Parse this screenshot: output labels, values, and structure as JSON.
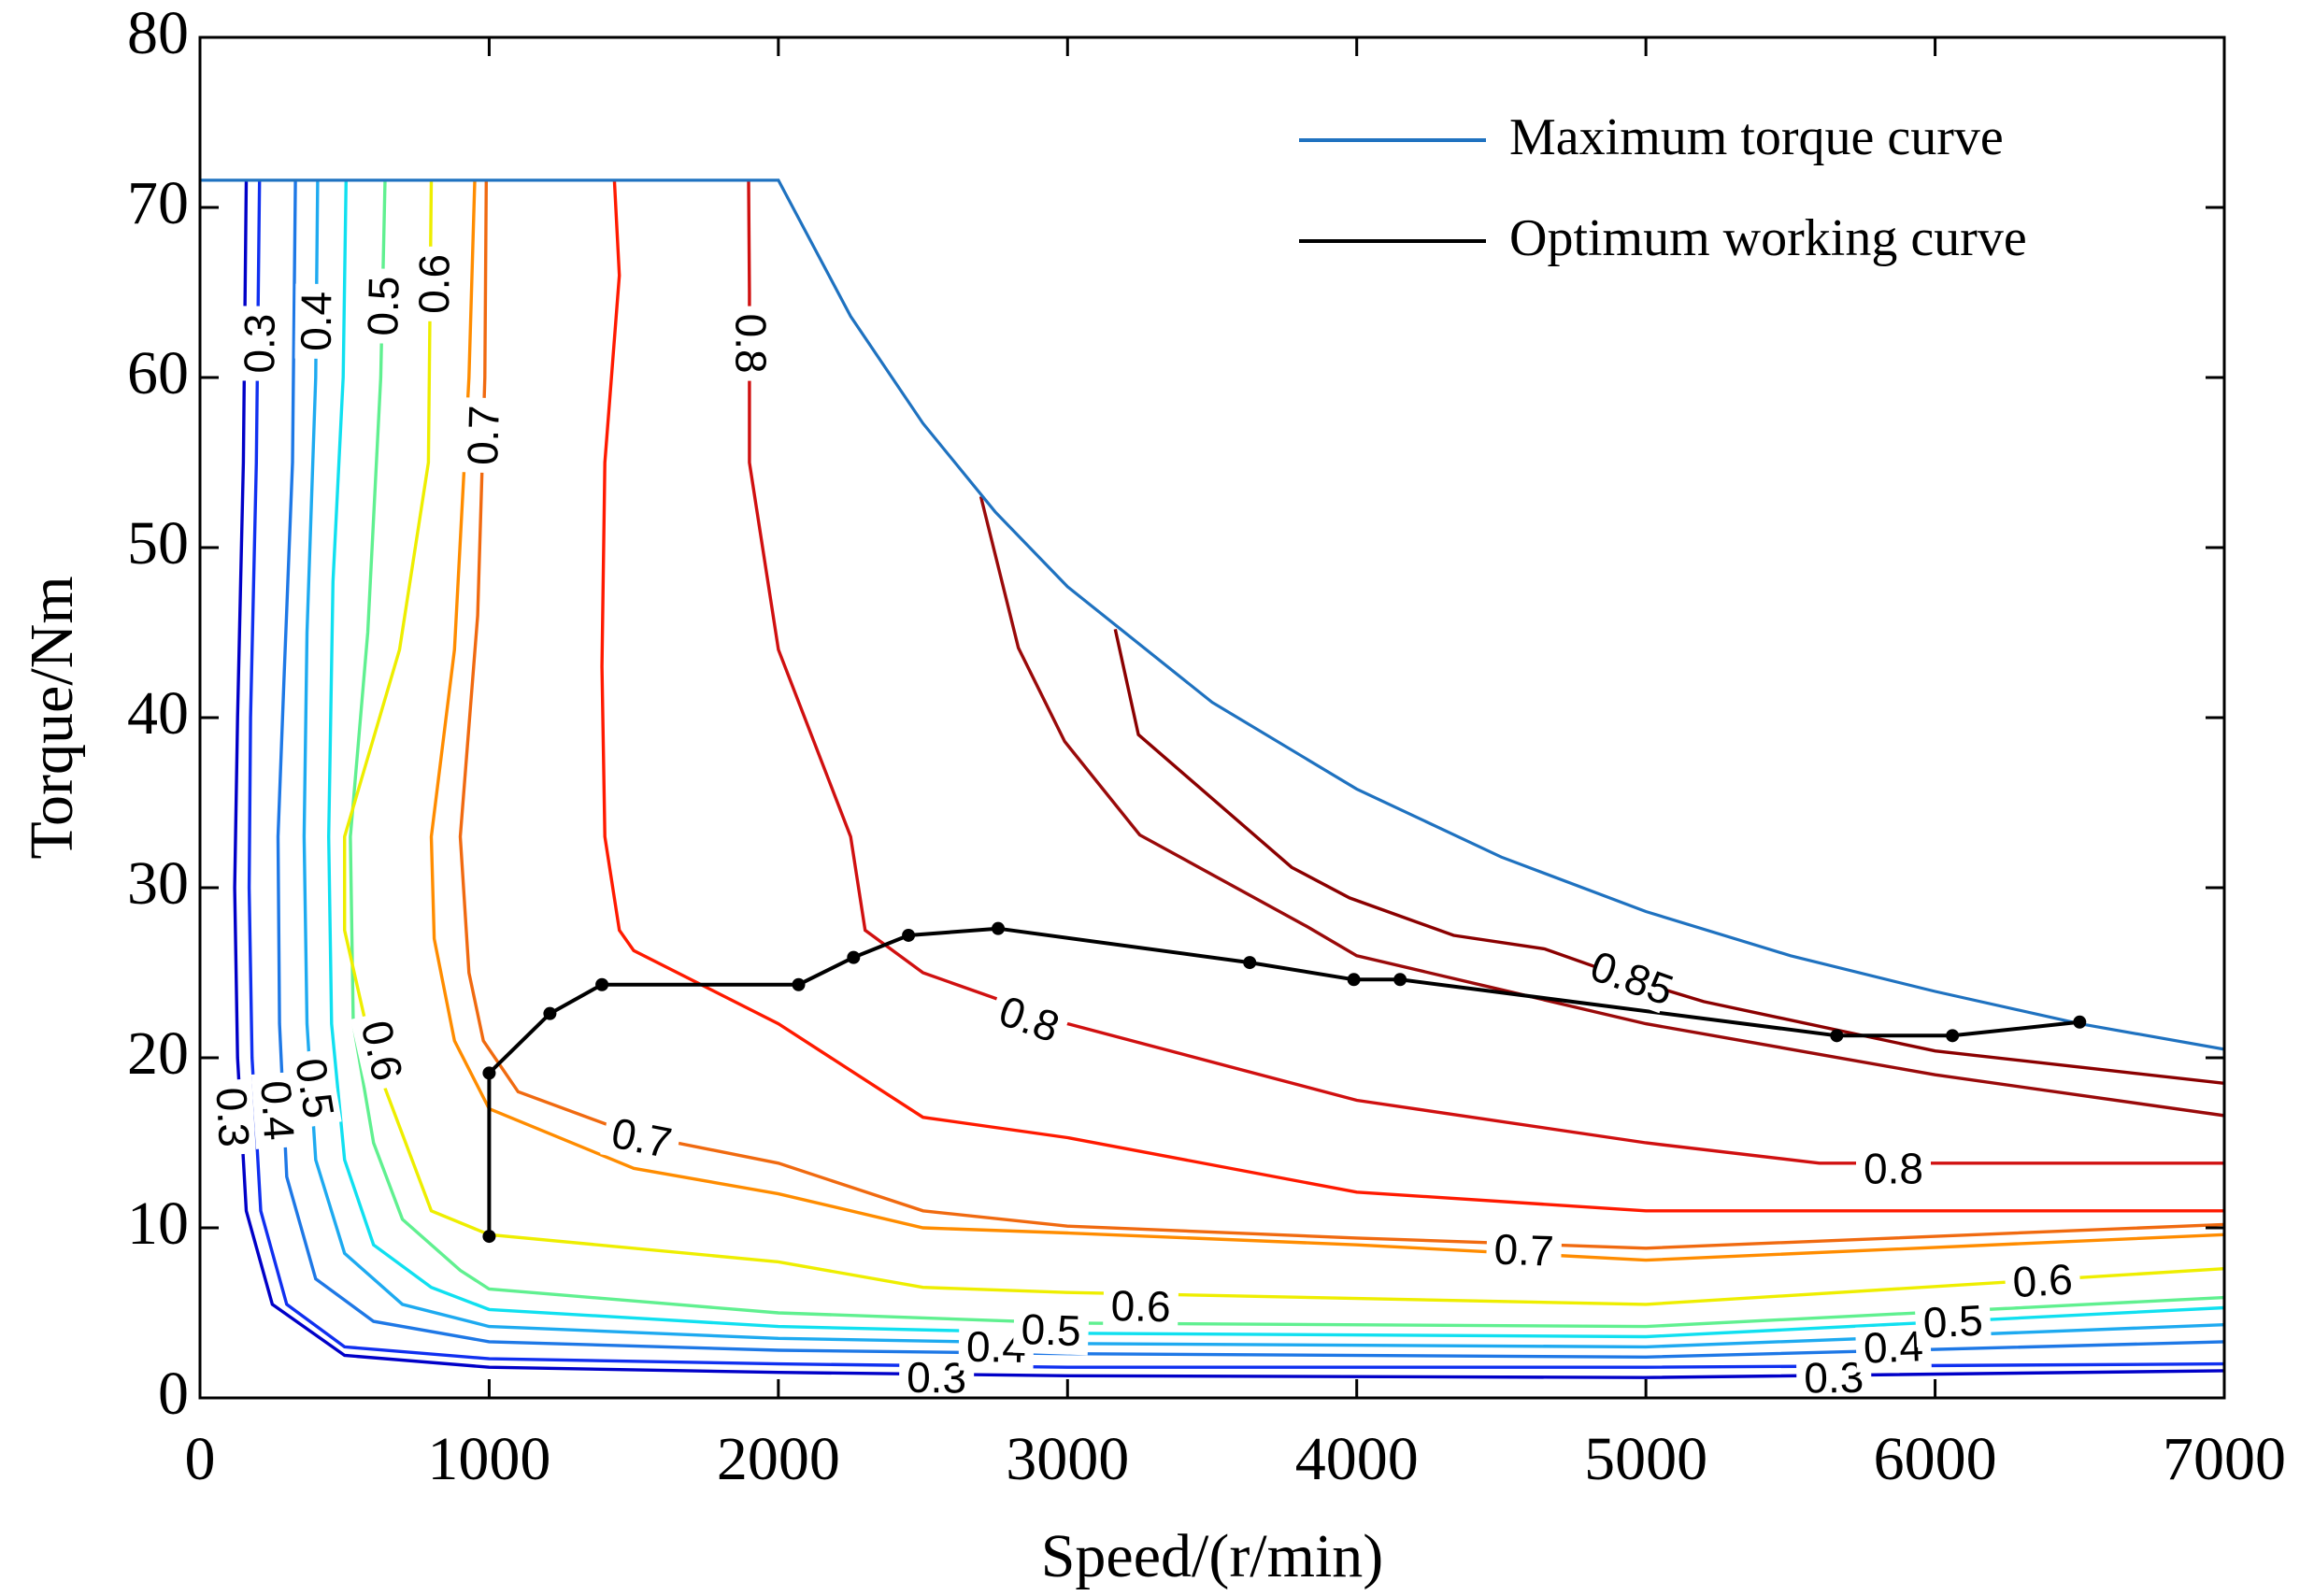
{
  "chart_data": {
    "type": "contour",
    "x_label": "Speed/(r/min)",
    "y_label": "Torque/Nm",
    "xlim": [
      0,
      7000
    ],
    "ylim": [
      0,
      80
    ],
    "xticks": [
      0,
      1000,
      2000,
      3000,
      4000,
      5000,
      6000,
      7000
    ],
    "yticks": [
      0,
      10,
      20,
      30,
      40,
      50,
      60,
      70,
      80
    ],
    "legend": "upper right",
    "series": [
      {
        "name": "Maximum torque curve",
        "color": "#1f72c0",
        "markers": false,
        "x": [
          0,
          2000,
          2250,
          2500,
          2750,
          3000,
          3500,
          4000,
          4500,
          5000,
          5500,
          6000,
          6500,
          7000
        ],
        "values": [
          71.6,
          71.6,
          63.6,
          57.3,
          52.1,
          47.7,
          40.9,
          35.8,
          31.8,
          28.6,
          26.0,
          23.9,
          22.0,
          20.5
        ]
      },
      {
        "name": "Optimum working curve",
        "color": "#000000",
        "markers": true,
        "x": [
          1000,
          1000,
          1210,
          1390,
          2070,
          2260,
          2450,
          2760,
          3630,
          3990,
          4150,
          5660,
          6060,
          6500
        ],
        "values": [
          9.5,
          19.1,
          22.6,
          24.3,
          24.3,
          25.9,
          27.2,
          27.6,
          25.6,
          24.6,
          24.6,
          21.3,
          21.3,
          22.1
        ]
      }
    ],
    "contours": [
      {
        "level": 0.3,
        "color": "#0000c8",
        "x": [
          160,
          150,
          130,
          120,
          130,
          160,
          250,
          500,
          1000,
          2000,
          3000,
          5000,
          7000
        ],
        "y": [
          71.6,
          55,
          40,
          30,
          20,
          11,
          5.5,
          2.5,
          1.8,
          1.5,
          1.3,
          1.2,
          1.6
        ],
        "labels": [
          {
            "x": 211,
            "y": 62
          },
          {
            "x": 108,
            "y": 16.5
          },
          {
            "x": 2547,
            "y": 1.1
          },
          {
            "x": 5650,
            "y": 1.1
          }
        ]
      },
      {
        "color": "#1030f0",
        "x": [
          206,
          195,
          175,
          170,
          180,
          210,
          300,
          500,
          1000,
          2000,
          3000,
          5000,
          7000
        ],
        "y": [
          71.6,
          55,
          40,
          30,
          20,
          11,
          5.5,
          3,
          2.3,
          2,
          1.8,
          1.8,
          2.0
        ]
      },
      {
        "color": "#1e78e6",
        "x": [
          330,
          320,
          290,
          270,
          275,
          300,
          400,
          600,
          1000,
          2000,
          3000,
          5000,
          7000
        ],
        "y": [
          71.6,
          55,
          42,
          33,
          22,
          13,
          7,
          4.5,
          3.3,
          2.8,
          2.6,
          2.4,
          3.3
        ]
      },
      {
        "level": 0.4,
        "color": "#1eaaf0",
        "x": [
          407,
          400,
          370,
          360,
          370,
          400,
          500,
          700,
          1000,
          2000,
          3000,
          5000,
          7000
        ],
        "y": [
          71.6,
          60,
          45,
          33,
          22,
          14,
          8.5,
          5.5,
          4.2,
          3.5,
          3.2,
          3.0,
          4.3
        ],
        "labels": [
          {
            "x": 407,
            "y": 63.3
          },
          {
            "x": 263,
            "y": 16.9
          },
          {
            "x": 2753,
            "y": 2.9
          },
          {
            "x": 5856,
            "y": 2.9
          }
        ]
      },
      {
        "color": "#10e0f0",
        "x": [
          505,
          495,
          460,
          445,
          455,
          500,
          600,
          800,
          1000,
          2000,
          3000,
          5000,
          7000
        ],
        "y": [
          71.6,
          60,
          48,
          33,
          22,
          14,
          9,
          6.5,
          5.2,
          4.2,
          3.8,
          3.6,
          5.3
        ]
      },
      {
        "level": 0.5,
        "color": "#60f090",
        "x": [
          640,
          625,
          580,
          520,
          530,
          600,
          700,
          900,
          1000,
          2000,
          3000,
          5000,
          7000
        ],
        "y": [
          71.6,
          60,
          45,
          33,
          22,
          15,
          10.5,
          7.5,
          6.4,
          5,
          4.4,
          4.2,
          5.9
        ],
        "labels": [
          {
            "x": 639,
            "y": 64.2
          },
          {
            "x": 392,
            "y": 18.2
          },
          {
            "x": 2943,
            "y": 3.9
          },
          {
            "x": 6062,
            "y": 4.4
          }
        ]
      },
      {
        "level": 0.6,
        "color": "#eeee00",
        "x": [
          800,
          790,
          690,
          500,
          500,
          600,
          800,
          1000,
          2000,
          2500,
          3000,
          5000,
          7000
        ],
        "y": [
          71.6,
          55,
          44,
          33,
          27.5,
          20,
          11,
          9.6,
          8,
          6.5,
          6.2,
          5.5,
          7.6
        ],
        "labels": [
          {
            "x": 815,
            "y": 65.5
          },
          {
            "x": 624,
            "y": 20.4
          },
          {
            "x": 3253,
            "y": 5.3
          },
          {
            "x": 6372,
            "y": 6.8
          }
        ]
      },
      {
        "color": "#ff8c00",
        "x": [
          950,
          930,
          880,
          800,
          810,
          880,
          1000,
          1500,
          2000,
          2500,
          3000,
          4000,
          5000,
          7000
        ],
        "y": [
          71.6,
          60,
          44,
          33,
          27,
          21,
          17,
          13.5,
          12,
          10,
          9.7,
          9.0,
          8.1,
          9.6
        ]
      },
      {
        "level": 0.7,
        "color": "#f06a10",
        "x": [
          990,
          985,
          960,
          900,
          930,
          980,
          1100,
          1500,
          2000,
          2500,
          3000,
          4000,
          5000,
          7000
        ],
        "y": [
          71.6,
          60,
          46,
          33,
          25,
          21,
          18,
          15.5,
          13.8,
          11,
          10.1,
          9.4,
          8.8,
          10.2
        ],
        "labels": [
          {
            "x": 985,
            "y": 56.6
          },
          {
            "x": 1526,
            "y": 15.2
          },
          {
            "x": 4578,
            "y": 8.6
          }
        ]
      },
      {
        "color": "#ff1a00",
        "x": [
          1433,
          1450,
          1400,
          1390,
          1400,
          1450,
          1500,
          2000,
          2500,
          3000,
          4000,
          5000,
          7000
        ],
        "y": [
          71.6,
          66,
          55,
          43,
          33,
          27.5,
          26.3,
          22,
          16.5,
          15.3,
          12.1,
          11.0,
          11.0
        ]
      },
      {
        "level": 0.8,
        "color": "#d01010",
        "x": [
          1897,
          1900,
          1900,
          2000,
          2250,
          2300,
          2500,
          3000,
          4000,
          5000,
          5600,
          7000
        ],
        "y": [
          71.6,
          65,
          55,
          44,
          33,
          27.5,
          25,
          22,
          17.5,
          15,
          13.8,
          13.8
        ],
        "labels": [
          {
            "x": 1900,
            "y": 62
          },
          {
            "x": 2866,
            "y": 22.2
          },
          {
            "x": 5856,
            "y": 13.4
          }
        ]
      },
      {
        "level": 0.85,
        "color": "#8b0000",
        "x": [
          3165,
          3245,
          3775,
          3975,
          4335,
          4650,
          4950,
          5200,
          6000,
          7000
        ],
        "y": [
          45.2,
          39,
          31.2,
          29.4,
          27.2,
          26.4,
          24.6,
          23.3,
          20.4,
          18.5
        ],
        "labels": [
          {
            "x": 4950,
            "y": 24.6
          }
        ]
      },
      {
        "color": "#9a0a0a",
        "x": [
          2700,
          2830,
          2990,
          3250,
          3830,
          4000,
          4500,
          5000,
          6000,
          7000
        ],
        "y": [
          53,
          44.1,
          38.6,
          33.1,
          27.7,
          26,
          24,
          22,
          19,
          16.6
        ]
      }
    ]
  }
}
